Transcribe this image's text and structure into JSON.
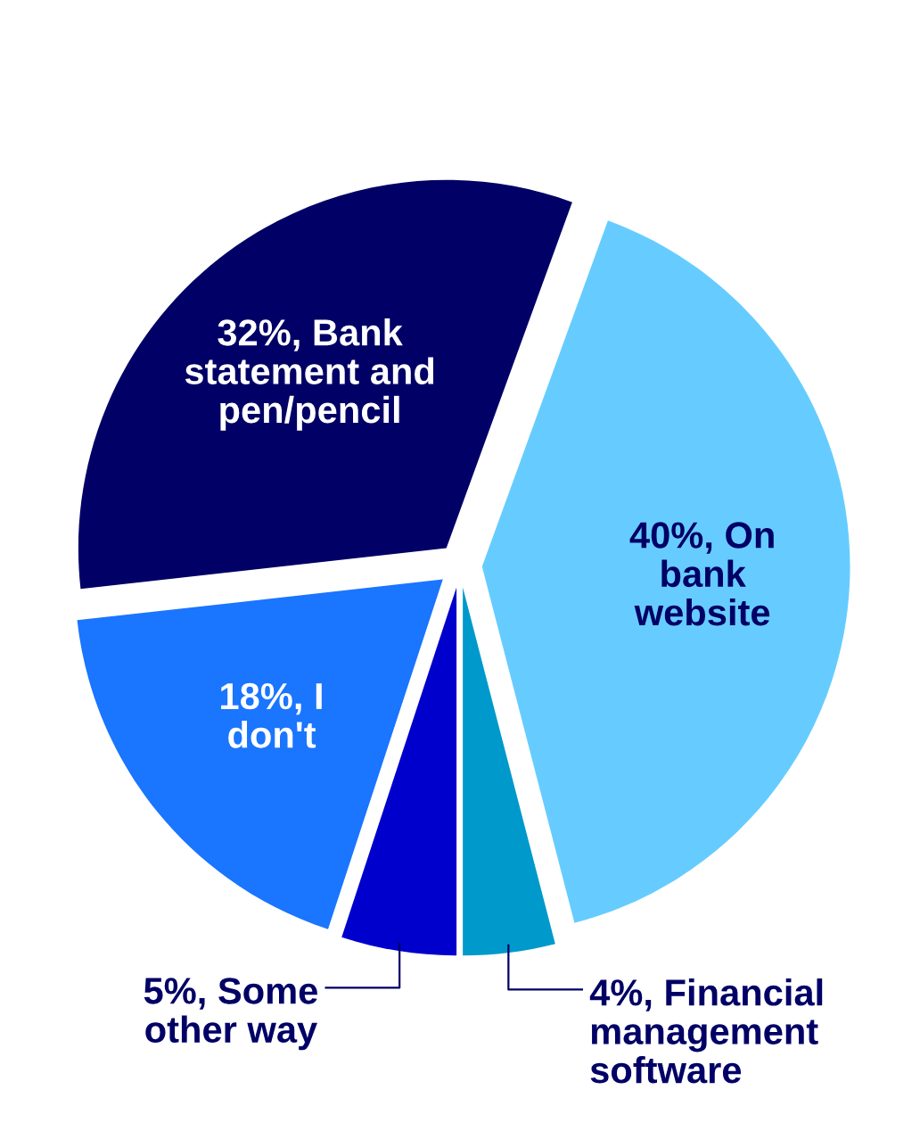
{
  "chart_data": {
    "type": "pie",
    "categories": [
      "On bank website",
      "Financial management software",
      "Some other way",
      "I don't",
      "Bank statement and pen/pencil"
    ],
    "values": [
      40,
      4,
      5,
      18,
      32
    ],
    "value_labels": [
      "40%",
      "4%",
      "5%",
      "18%",
      "32%"
    ],
    "colors": [
      "#66ccff",
      "#0099cc",
      "#0000cc",
      "#1a75ff",
      "#000066"
    ],
    "legend": false
  }
}
